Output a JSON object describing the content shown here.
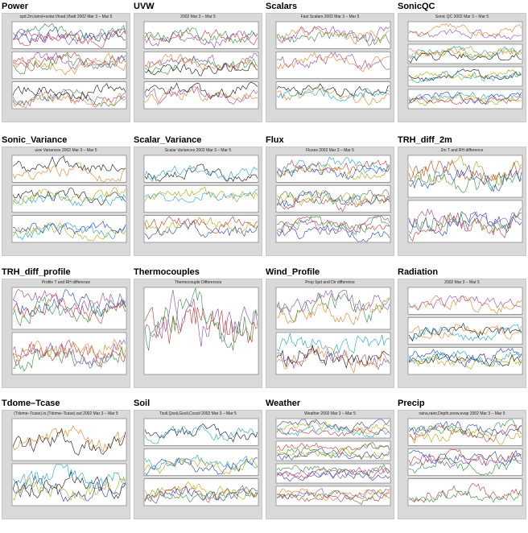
{
  "panels": [
    {
      "id": "power",
      "title": "Power",
      "plot_title": "spd.2m,lwind+solar,Vload,Vbatt 2002 Mar 3 – Mar 5"
    },
    {
      "id": "uvw",
      "title": "UVW",
      "plot_title": "2002 Mar 3 – Mar 5"
    },
    {
      "id": "scalars",
      "title": "Scalars",
      "plot_title": "Fast Scalars 2002 Mar 3 – Mar 5"
    },
    {
      "id": "sonicqc",
      "title": "SonicQC",
      "plot_title": "Sonic QC 2002 Mar 3 – Mar 5"
    },
    {
      "id": "sonic_variance",
      "title": "Sonic_Variance",
      "plot_title": "uvw Variances 2002 Mar 3 – Mar 5"
    },
    {
      "id": "scalar_variance",
      "title": "Scalar_Variance",
      "plot_title": "Scalar Variances 2002 Mar 3 – Mar 5"
    },
    {
      "id": "flux",
      "title": "Flux",
      "plot_title": "Fluxes 2002 Mar 3 – Mar 5"
    },
    {
      "id": "trh_diff_2m",
      "title": "TRH_diff_2m",
      "plot_title": "2m T and RH difference"
    },
    {
      "id": "trh_diff_profile",
      "title": "TRH_diff_profile",
      "plot_title": "Profile T and RH difference"
    },
    {
      "id": "thermocouples",
      "title": "Thermocouples",
      "plot_title": "Thermocouple Differences"
    },
    {
      "id": "wind_profile",
      "title": "Wind_Profile",
      "plot_title": "Prop Spd and Dir difference"
    },
    {
      "id": "radiation",
      "title": "Radiation",
      "plot_title": "2002 Mar 3 – Mar 5"
    },
    {
      "id": "tdome_tcase",
      "title": "Tdome–Tcase",
      "plot_title": "(Tdome–Tcase).in,(Tdome–Tcase).out 2002 Mar 3 – Mar 5"
    },
    {
      "id": "soil",
      "title": "Soil",
      "plot_title": "Tsoil,Qsoil,Gsoil,Cvsoil 2002 Mar 3 – Mar 5"
    },
    {
      "id": "weather",
      "title": "Weather",
      "plot_title": "Weather 2002 Mar 3 – Mar 5"
    },
    {
      "id": "precip",
      "title": "Precip",
      "plot_title": "raina,rainr,Depth,snow,evap 2002 Mar 3 – Mar 5"
    }
  ],
  "colors": [
    "#1f3fbf",
    "#c0392b",
    "#2e8b3a",
    "#8e44ad",
    "#e67e22",
    "#111111",
    "#17a2c8",
    "#b5a000"
  ]
}
